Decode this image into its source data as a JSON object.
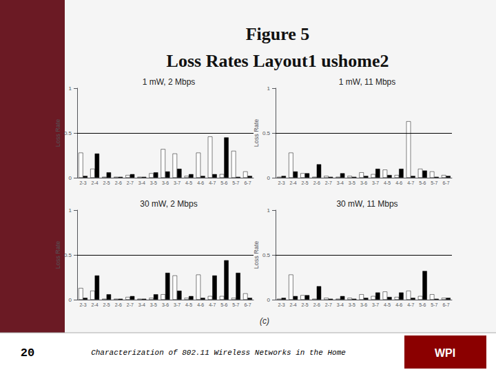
{
  "title": "Figure 5",
  "subtitle": "Loss Rates Layout1 ushome2",
  "annotations": [
    "(c)",
    "20",
    "Characterization of 802.11 Wireless Networks in the Home",
    "WPI"
  ],
  "chart_data": [
    {
      "type": "bar",
      "title": "1 mW, 2 Mbps",
      "categories": [
        "2-3",
        "2-4",
        "2-5",
        "2-6",
        "2-7",
        "3-4",
        "3-5",
        "3-6",
        "3-7",
        "4-5",
        "4-6",
        "4-7",
        "5-6",
        "5-7",
        "6-7"
      ],
      "series": [
        {
          "color": "#ffffff",
          "values": [
            0.28,
            0.1,
            0.01,
            0.01,
            0.03,
            0.01,
            0.05,
            0.32,
            0.27,
            0.02,
            0.28,
            0.46,
            0.04,
            0.3,
            0.07
          ]
        },
        {
          "color": "#000000",
          "values": [
            0.02,
            0.27,
            0.06,
            0.01,
            0.04,
            0.01,
            0.06,
            0.07,
            0.1,
            0.04,
            0.02,
            0.04,
            0.45,
            0.01,
            0.02
          ]
        }
      ],
      "ylabel": "Loss Rate",
      "ylim": [
        0,
        1.0
      ],
      "yticks": [
        0,
        0.5,
        1
      ],
      "reference_line": 0.5,
      "grid": false
    },
    {
      "type": "bar",
      "title": "1 mW, 11 Mbps",
      "categories": [
        "2-3",
        "2-4",
        "2-5",
        "2-6",
        "2-7",
        "3-4",
        "3-5",
        "3-6",
        "3-7",
        "4-5",
        "4-6",
        "4-7",
        "5-6",
        "5-7",
        "6-7"
      ],
      "series": [
        {
          "color": "#ffffff",
          "values": [
            0.01,
            0.28,
            0.05,
            0.01,
            0.02,
            0.01,
            0.02,
            0.06,
            0.04,
            0.09,
            0.03,
            0.63,
            0.1,
            0.07,
            0.03
          ]
        },
        {
          "color": "#000000",
          "values": [
            0.02,
            0.07,
            0.05,
            0.15,
            0.01,
            0.05,
            0.01,
            0.02,
            0.1,
            0.03,
            0.1,
            0.02,
            0.08,
            0.01,
            0.02
          ]
        }
      ],
      "ylabel": "Loss Rate",
      "ylim": [
        0,
        1.0
      ],
      "yticks": [
        0,
        0.5,
        1
      ],
      "reference_line": 0.5,
      "grid": false
    },
    {
      "type": "bar",
      "title": "30 mW, 2 Mbps",
      "categories": [
        "2-3",
        "2-4",
        "2-5",
        "2-6",
        "2-7",
        "3-4",
        "3-5",
        "3-6",
        "3-7",
        "4-5",
        "4-6",
        "4-7",
        "5-6",
        "5-7",
        "6-7"
      ],
      "series": [
        {
          "color": "#ffffff",
          "values": [
            0.13,
            0.1,
            0.01,
            0.01,
            0.03,
            0.01,
            0.02,
            0.06,
            0.27,
            0.02,
            0.28,
            0.04,
            0.04,
            0.02,
            0.07
          ]
        },
        {
          "color": "#000000",
          "values": [
            0.02,
            0.27,
            0.06,
            0.01,
            0.04,
            0.01,
            0.06,
            0.3,
            0.1,
            0.04,
            0.02,
            0.27,
            0.44,
            0.3,
            0.02
          ]
        }
      ],
      "ylabel": "Loss Rate",
      "ylim": [
        0,
        1.0
      ],
      "yticks": [
        0,
        0.5,
        1
      ],
      "reference_line": 0.5,
      "grid": false
    },
    {
      "type": "bar",
      "title": "30 mW, 11 Mbps",
      "categories": [
        "2-3",
        "2-4",
        "2-5",
        "2-6",
        "2-7",
        "3-4",
        "3-5",
        "3-6",
        "3-7",
        "4-5",
        "4-6",
        "4-7",
        "5-6",
        "5-7",
        "6-7"
      ],
      "series": [
        {
          "color": "#ffffff",
          "values": [
            0.01,
            0.28,
            0.05,
            0.01,
            0.02,
            0.01,
            0.02,
            0.06,
            0.04,
            0.09,
            0.03,
            0.1,
            0.04,
            0.06,
            0.02
          ]
        },
        {
          "color": "#000000",
          "values": [
            0.02,
            0.04,
            0.05,
            0.15,
            0.01,
            0.04,
            0.01,
            0.02,
            0.08,
            0.03,
            0.08,
            0.02,
            0.32,
            0.01,
            0.02
          ]
        }
      ],
      "ylabel": "Loss Rate",
      "ylim": [
        0,
        1.0
      ],
      "yticks": [
        0,
        0.5,
        1
      ],
      "reference_line": 0.5,
      "grid": false
    }
  ]
}
